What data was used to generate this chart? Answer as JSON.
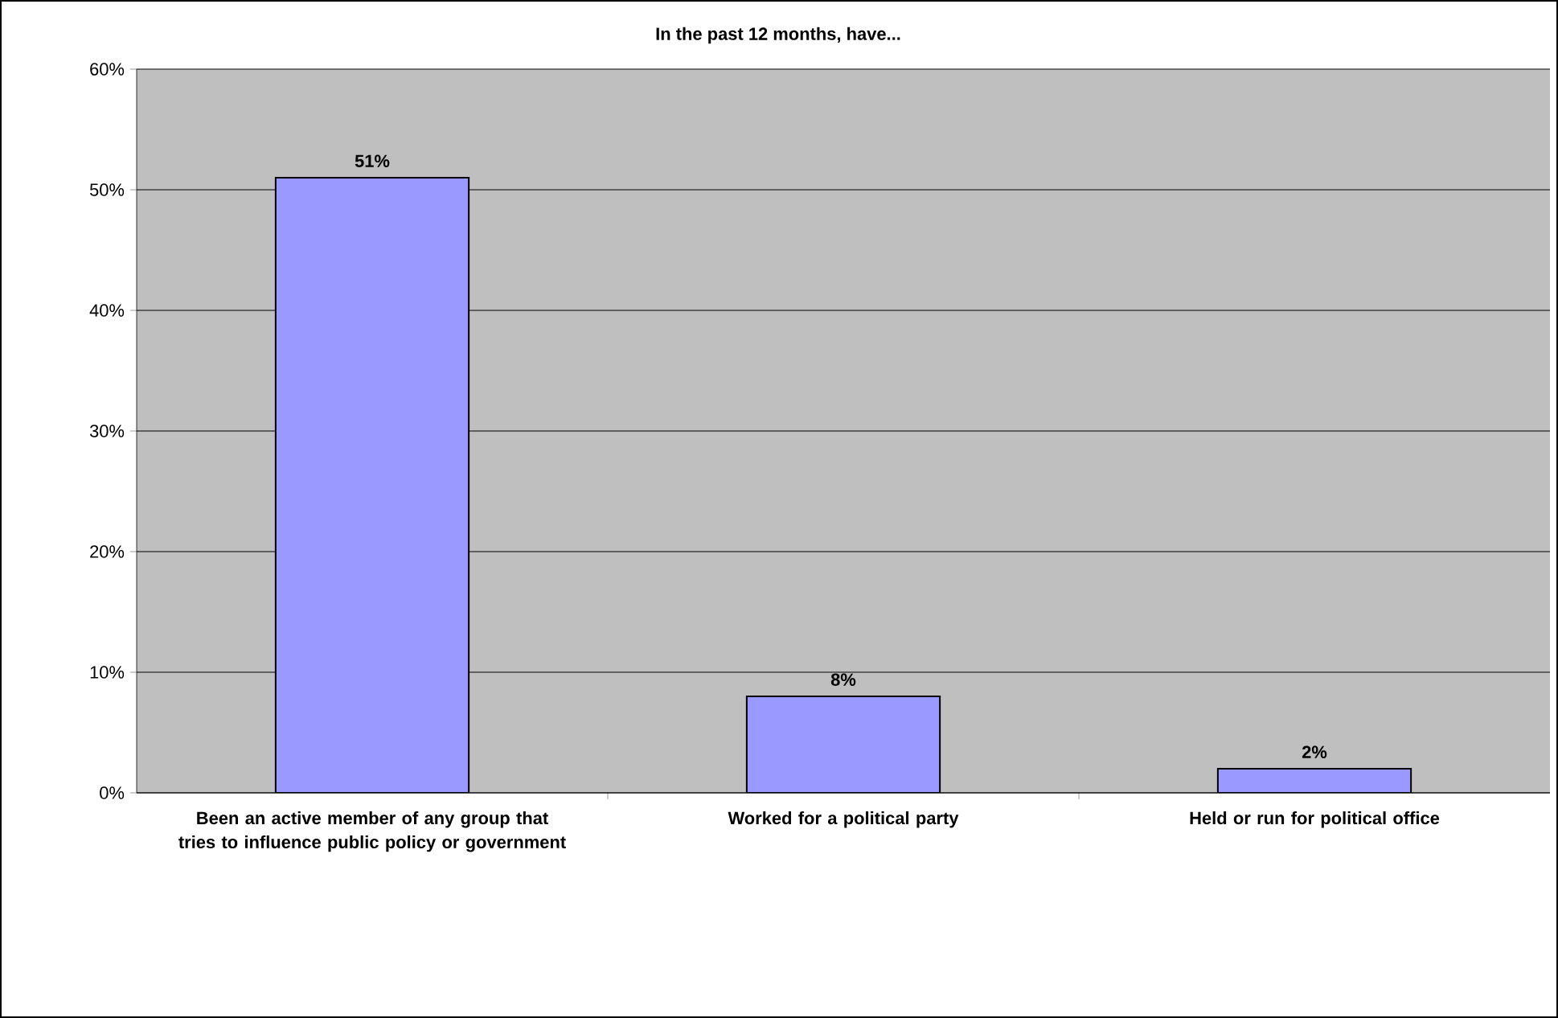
{
  "chart_data": {
    "type": "bar",
    "title": "In the past 12 months, have...",
    "categories": [
      "Been an active member of any group that tries to influence public policy or government",
      "Worked for a political party",
      "Held or run for political office"
    ],
    "values": [
      51,
      8,
      2
    ],
    "color": "#9999ff",
    "value_labels": [
      "51%",
      "8%",
      "2%"
    ],
    "ylim": [
      0,
      60
    ],
    "yticks": [
      {
        "value": 0,
        "label": "0%"
      },
      {
        "value": 10,
        "label": "10%"
      },
      {
        "value": 20,
        "label": "20%"
      },
      {
        "value": 30,
        "label": "30%"
      },
      {
        "value": 40,
        "label": "40%"
      },
      {
        "value": 50,
        "label": "50%"
      },
      {
        "value": 60,
        "label": "60%"
      }
    ],
    "grid": "y"
  }
}
